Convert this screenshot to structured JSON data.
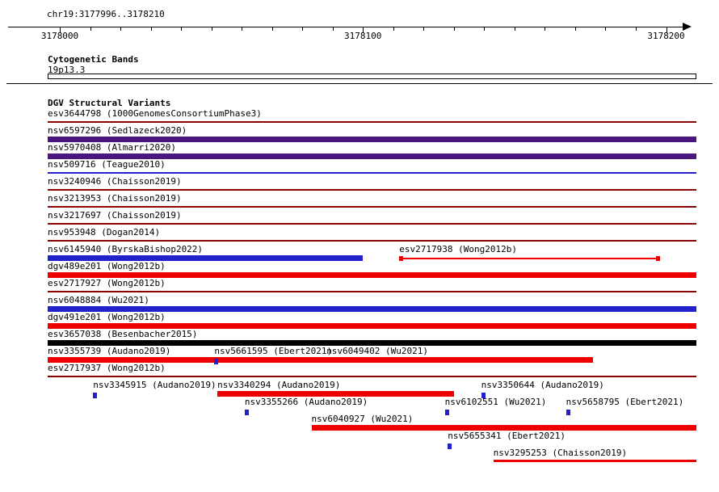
{
  "header": {
    "region_label": "chr19:3177996..3178210"
  },
  "sections": {
    "cytoband_heading": "Cytogenetic Bands",
    "cytoband_band": "19p13.3",
    "variants_heading": "DGV Structural Variants"
  },
  "chart_data": {
    "type": "bar",
    "orientation": "horizontal",
    "title": "DGV Structural Variants",
    "region": {
      "chrom": "chr19",
      "start": 3177996,
      "end": 3178210,
      "label": "chr19:3177996..3178210"
    },
    "axis": {
      "xlim": [
        3177996,
        3178210
      ],
      "tick_interval": 10,
      "major_ticks": [
        3178000,
        3178100,
        3178200
      ],
      "major_tick_labels": [
        "3178000",
        "3178100",
        "3178200"
      ]
    },
    "palette": {
      "dark_red": "#8b0000",
      "bright_red": "#ee0000",
      "blue": "#2222cc",
      "purple": "#4b177e",
      "black": "#000000"
    },
    "rows": [
      {
        "features": [
          {
            "name": "esv3644798",
            "study": "1000GenomesConsortiumPhase3",
            "start": 3177996,
            "end": 3178210,
            "glyph": "line",
            "color": "#8b0000"
          }
        ]
      },
      {
        "features": [
          {
            "name": "nsv6597296",
            "study": "Sedlazeck2020",
            "start": 3177996,
            "end": 3178210,
            "glyph": "box",
            "color": "#4b177e"
          }
        ]
      },
      {
        "features": [
          {
            "name": "nsv5970408",
            "study": "Almarri2020",
            "start": 3177996,
            "end": 3178210,
            "glyph": "box",
            "color": "#4b177e"
          }
        ]
      },
      {
        "features": [
          {
            "name": "nsv509716",
            "study": "Teague2010",
            "start": 3177996,
            "end": 3178210,
            "glyph": "line",
            "color": "#2222cc"
          }
        ]
      },
      {
        "features": [
          {
            "name": "nsv3240946",
            "study": "Chaisson2019",
            "start": 3177996,
            "end": 3178210,
            "glyph": "line",
            "color": "#8b0000"
          }
        ]
      },
      {
        "features": [
          {
            "name": "nsv3213953",
            "study": "Chaisson2019",
            "start": 3177996,
            "end": 3178210,
            "glyph": "line",
            "color": "#8b0000"
          }
        ]
      },
      {
        "features": [
          {
            "name": "nsv3217697",
            "study": "Chaisson2019",
            "start": 3177996,
            "end": 3178210,
            "glyph": "line",
            "color": "#8b0000"
          }
        ]
      },
      {
        "features": [
          {
            "name": "nsv953948",
            "study": "Dogan2014",
            "start": 3177996,
            "end": 3178210,
            "glyph": "line",
            "color": "#8b0000"
          }
        ]
      },
      {
        "features": [
          {
            "name": "nsv6145940",
            "study": "ByrskaBishop2022",
            "start": 3177996,
            "end": 3178100,
            "glyph": "box",
            "color": "#2222cc"
          },
          {
            "name": "esv2717938",
            "study": "Wong2012b",
            "start": 3178112,
            "end": 3178198,
            "glyph": "range",
            "color": "#ee0000"
          }
        ]
      },
      {
        "features": [
          {
            "name": "dgv489e201",
            "study": "Wong2012b",
            "start": 3177996,
            "end": 3178210,
            "glyph": "box",
            "color": "#ee0000"
          }
        ]
      },
      {
        "features": [
          {
            "name": "esv2717927",
            "study": "Wong2012b",
            "start": 3177996,
            "end": 3178210,
            "glyph": "line",
            "color": "#8b0000"
          }
        ]
      },
      {
        "features": [
          {
            "name": "nsv6048884",
            "study": "Wu2021",
            "start": 3177996,
            "end": 3178210,
            "glyph": "box",
            "color": "#2222cc"
          }
        ]
      },
      {
        "features": [
          {
            "name": "dgv491e201",
            "study": "Wong2012b",
            "start": 3177996,
            "end": 3178210,
            "glyph": "box",
            "color": "#ee0000"
          }
        ]
      },
      {
        "features": [
          {
            "name": "esv3657038",
            "study": "Besenbacher2015",
            "start": 3177996,
            "end": 3178210,
            "glyph": "box",
            "color": "#000000"
          }
        ]
      },
      {
        "features": [
          {
            "name": "nsv3355739",
            "study": "Audano2019",
            "start": 3177996,
            "end": 3178176,
            "glyph": "box",
            "color": "#ee0000"
          },
          {
            "name": "nsv5661595",
            "study": "Ebert2021",
            "start": 3178051,
            "end": 3178052,
            "glyph": "marker",
            "color": "#2222cc"
          },
          {
            "name": "nsv6049402",
            "study": "Wu2021",
            "start": 3178088,
            "end": 3178176,
            "glyph": "box",
            "color": "#ee0000"
          }
        ]
      },
      {
        "features": [
          {
            "name": "esv2717937",
            "study": "Wong2012b",
            "start": 3177996,
            "end": 3178210,
            "glyph": "line",
            "color": "#8b0000"
          }
        ]
      },
      {
        "features": [
          {
            "name": "nsv3345915",
            "study": "Audano2019",
            "start": 3178011,
            "end": 3178012,
            "glyph": "marker",
            "color": "#2222cc"
          },
          {
            "name": "nsv3340294",
            "study": "Audano2019",
            "start": 3178052,
            "end": 3178130,
            "glyph": "box",
            "color": "#ee0000"
          },
          {
            "name": "nsv3350644",
            "study": "Audano2019",
            "start": 3178139,
            "end": 3178140,
            "glyph": "marker",
            "color": "#2222cc"
          }
        ]
      },
      {
        "features": [
          {
            "name": "nsv3355266",
            "study": "Audano2019",
            "start": 3178061,
            "end": 3178062,
            "glyph": "marker",
            "color": "#2222cc"
          },
          {
            "name": "nsv6102551",
            "study": "Wu2021",
            "start": 3178127,
            "end": 3178128,
            "glyph": "marker",
            "color": "#2222cc"
          },
          {
            "name": "nsv5658795",
            "study": "Ebert2021",
            "start": 3178167,
            "end": 3178168,
            "glyph": "marker",
            "color": "#2222cc"
          }
        ]
      },
      {
        "features": [
          {
            "name": "nsv6040927",
            "study": "Wu2021",
            "start": 3178083,
            "end": 3178210,
            "glyph": "box",
            "color": "#ee0000"
          }
        ]
      },
      {
        "features": [
          {
            "name": "nsv5655341",
            "study": "Ebert2021",
            "start": 3178128,
            "end": 3178129,
            "glyph": "marker",
            "color": "#2222cc"
          }
        ]
      },
      {
        "features": [
          {
            "name": "nsv3295253",
            "study": "Chaisson2019",
            "start": 3178143,
            "end": 3178210,
            "glyph": "thickline",
            "color": "#ee0000"
          }
        ]
      }
    ]
  }
}
